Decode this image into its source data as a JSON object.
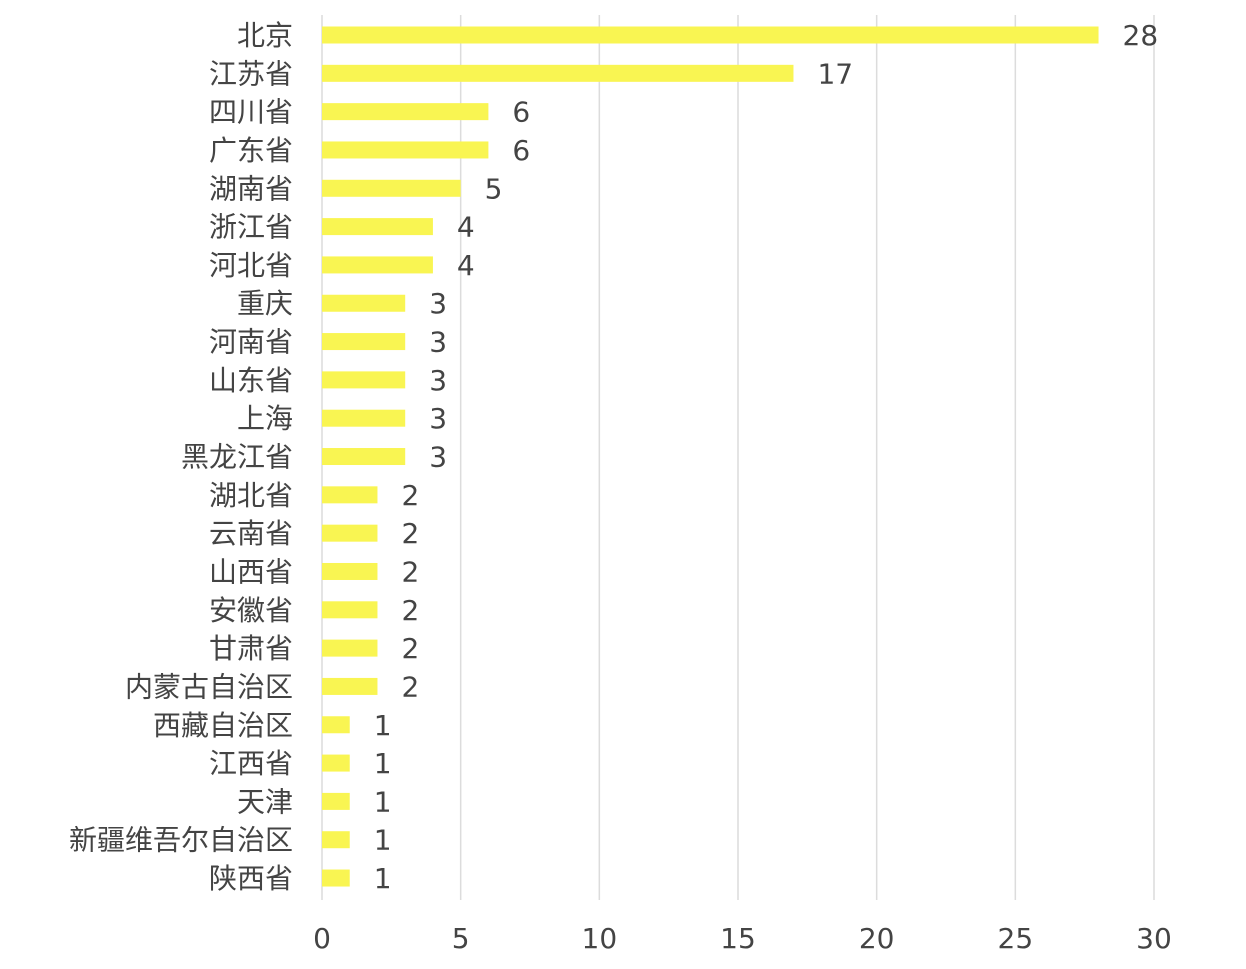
{
  "chart_data": {
    "type": "bar",
    "orientation": "horizontal",
    "title": "",
    "xlabel": "",
    "ylabel": "",
    "xlim": [
      0,
      30
    ],
    "x_ticks": [
      0,
      5,
      10,
      15,
      20,
      25,
      30
    ],
    "grid": "vertical",
    "legend": "none",
    "bar_color": "#f9f552",
    "categories": [
      "北京",
      "江苏省",
      "四川省",
      "广东省",
      "湖南省",
      "浙江省",
      "河北省",
      "重庆",
      "河南省",
      "山东省",
      "上海",
      "黑龙江省",
      "湖北省",
      "云南省",
      "山西省",
      "安徽省",
      "甘肃省",
      "内蒙古自治区",
      "西藏自治区",
      "江西省",
      "天津",
      "新疆维吾尔自治区",
      "陕西省"
    ],
    "values": [
      28,
      17,
      6,
      6,
      5,
      4,
      4,
      3,
      3,
      3,
      3,
      3,
      2,
      2,
      2,
      2,
      2,
      2,
      1,
      1,
      1,
      1,
      1
    ]
  }
}
